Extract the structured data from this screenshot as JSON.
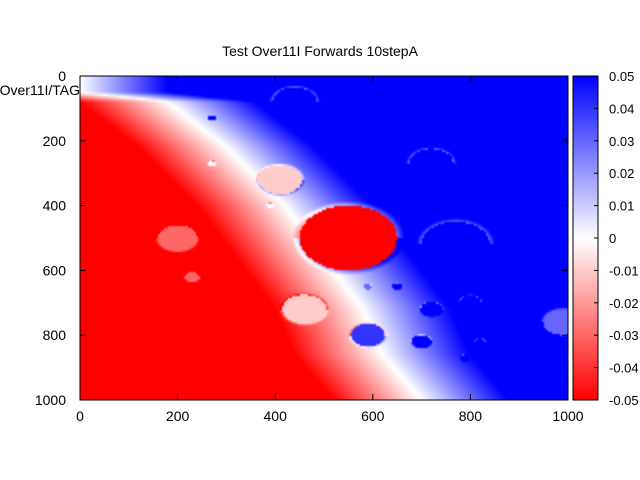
{
  "chart_data": {
    "type": "heatmap",
    "title": "Test Over11I Forwards 10stepA",
    "ylabel": "Over11I/TAG",
    "xlabel": "",
    "xlim": [
      0,
      1000
    ],
    "ylim": [
      0,
      1000
    ],
    "y_inverted": true,
    "x_ticks": [
      "0",
      "200",
      "400",
      "600",
      "800",
      "1000"
    ],
    "y_ticks": [
      "0",
      "200",
      "400",
      "600",
      "800",
      "1000"
    ],
    "colorbar": {
      "range": [
        -0.05,
        0.05
      ],
      "ticks": [
        "0.05",
        "0.04",
        "0.03",
        "0.02",
        "0.01",
        "0",
        "-0.01",
        "-0.02",
        "-0.03",
        "-0.04",
        "-0.05"
      ],
      "colors": {
        "low": "#ff0000",
        "mid": "#ffffff",
        "high": "#0000ff"
      }
    },
    "field_boundary": [
      [
        0,
        0.05
      ],
      [
        180,
        0.08
      ],
      [
        300,
        0.22
      ],
      [
        420,
        0.4
      ],
      [
        520,
        0.6
      ],
      [
        580,
        0.72
      ],
      [
        620,
        0.86
      ],
      [
        700,
        1.0
      ]
    ],
    "blobs": [
      {
        "x": 440,
        "y": 80,
        "r": 45,
        "v": 0.05
      },
      {
        "x": 270,
        "y": 130,
        "r": 8,
        "v": 0.05
      },
      {
        "x": 720,
        "y": 270,
        "r": 45,
        "v": 0.05
      },
      {
        "x": 410,
        "y": 320,
        "r": 45,
        "v": -0.01
      },
      {
        "x": 270,
        "y": 270,
        "r": 8,
        "v": 0.0
      },
      {
        "x": 390,
        "y": 400,
        "r": 8,
        "v": 0.0
      },
      {
        "x": 550,
        "y": 500,
        "r": 100,
        "v": -0.05
      },
      {
        "x": 770,
        "y": 520,
        "r": 70,
        "v": 0.05
      },
      {
        "x": 460,
        "y": 720,
        "r": 45,
        "v": -0.01
      },
      {
        "x": 590,
        "y": 650,
        "r": 8,
        "v": 0.03
      },
      {
        "x": 650,
        "y": 650,
        "r": 10,
        "v": 0.05
      },
      {
        "x": 720,
        "y": 720,
        "r": 22,
        "v": 0.05
      },
      {
        "x": 800,
        "y": 700,
        "r": 22,
        "v": 0.05
      },
      {
        "x": 590,
        "y": 800,
        "r": 35,
        "v": 0.04
      },
      {
        "x": 700,
        "y": 820,
        "r": 20,
        "v": 0.05
      },
      {
        "x": 820,
        "y": 820,
        "r": 10,
        "v": 0.05
      },
      {
        "x": 790,
        "y": 870,
        "r": 10,
        "v": 0.05
      },
      {
        "x": 230,
        "y": 620,
        "r": 15,
        "v": -0.03
      },
      {
        "x": 200,
        "y": 500,
        "r": 40,
        "v": -0.03
      },
      {
        "x": 990,
        "y": 760,
        "r": 40,
        "v": 0.03
      }
    ]
  }
}
